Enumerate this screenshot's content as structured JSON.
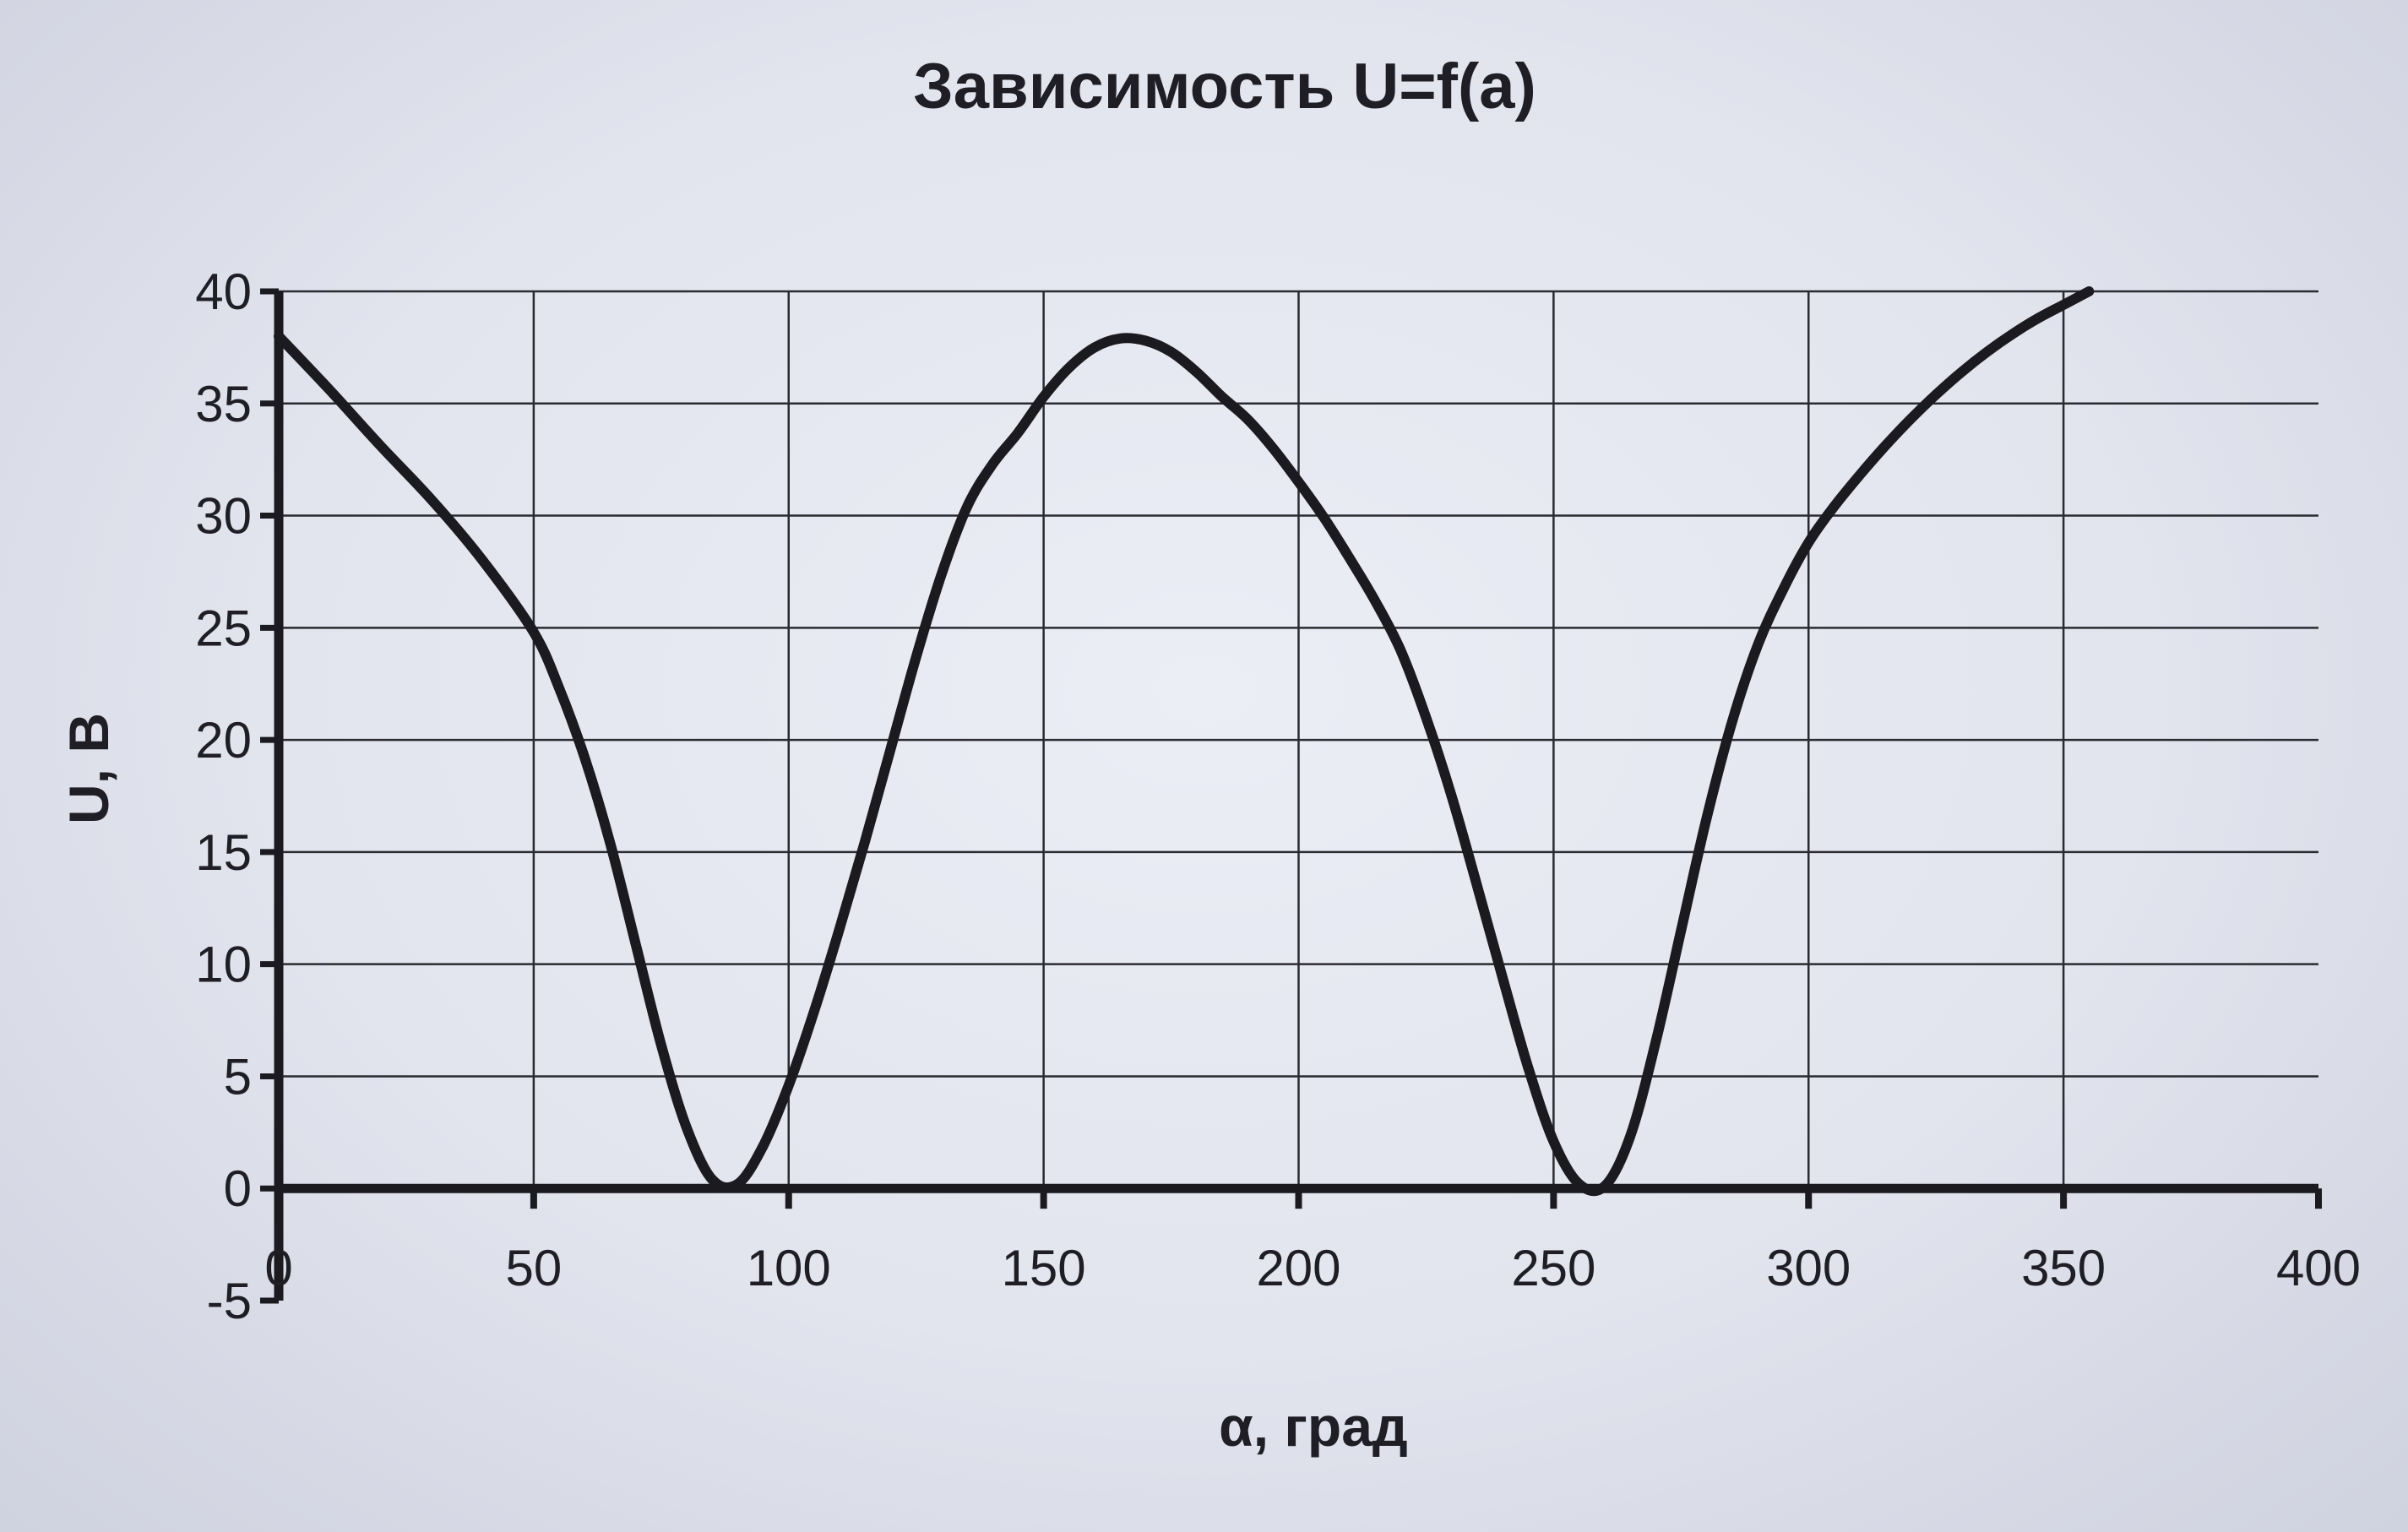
{
  "chart_data": {
    "type": "line",
    "title": "Зависимость U=f(a)",
    "xlabel": "α, град",
    "ylabel": "U, В",
    "xlim": [
      0,
      400
    ],
    "ylim": [
      -5,
      40
    ],
    "x_ticks": [
      "0",
      "50",
      "100",
      "150",
      "200",
      "250",
      "300",
      "350",
      "400"
    ],
    "y_ticks": [
      "40",
      "35",
      "30",
      "25",
      "20",
      "15",
      "10",
      "5",
      "0",
      "-5"
    ],
    "grid": true,
    "legend": "none",
    "series": [
      {
        "x": [
          0,
          10,
          20,
          30,
          40,
          50,
          55,
          60,
          65,
          70,
          75,
          80,
          85,
          90,
          95,
          100,
          105,
          110,
          115,
          120,
          125,
          130,
          135,
          140,
          145,
          150,
          155,
          160,
          165,
          170,
          175,
          180,
          185,
          190,
          195,
          200,
          205,
          210,
          215,
          220,
          225,
          230,
          235,
          240,
          245,
          250,
          255,
          260,
          265,
          270,
          275,
          280,
          285,
          290,
          295,
          300,
          305,
          310,
          315,
          320,
          325,
          330,
          335,
          340,
          345,
          350,
          355
        ],
        "y": [
          38,
          35.6,
          33.1,
          30.7,
          28,
          24.8,
          22.3,
          19.2,
          15.4,
          10.9,
          6.4,
          2.7,
          0.4,
          0.2,
          1.9,
          4.6,
          7.9,
          11.6,
          15.5,
          19.6,
          23.7,
          27.4,
          30.4,
          32.3,
          33.7,
          35.3,
          36.6,
          37.5,
          37.9,
          37.8,
          37.3,
          36.4,
          35.3,
          34.3,
          33,
          31.5,
          29.9,
          28.1,
          26.2,
          24,
          21,
          17.5,
          13.5,
          9.4,
          5.4,
          2.1,
          0.2,
          0.1,
          2.3,
          6.5,
          11.5,
          16.5,
          20.8,
          24.2,
          26.7,
          28.8,
          30.4,
          31.8,
          33.1,
          34.3,
          35.4,
          36.4,
          37.3,
          38.1,
          38.8,
          39.4,
          40
        ]
      }
    ]
  },
  "colors": {
    "background": "#e4e6ef",
    "grid": "#2a2a30",
    "axis": "#1a1a1f",
    "line": "#1a1a1f",
    "text": "#1e1e24"
  }
}
